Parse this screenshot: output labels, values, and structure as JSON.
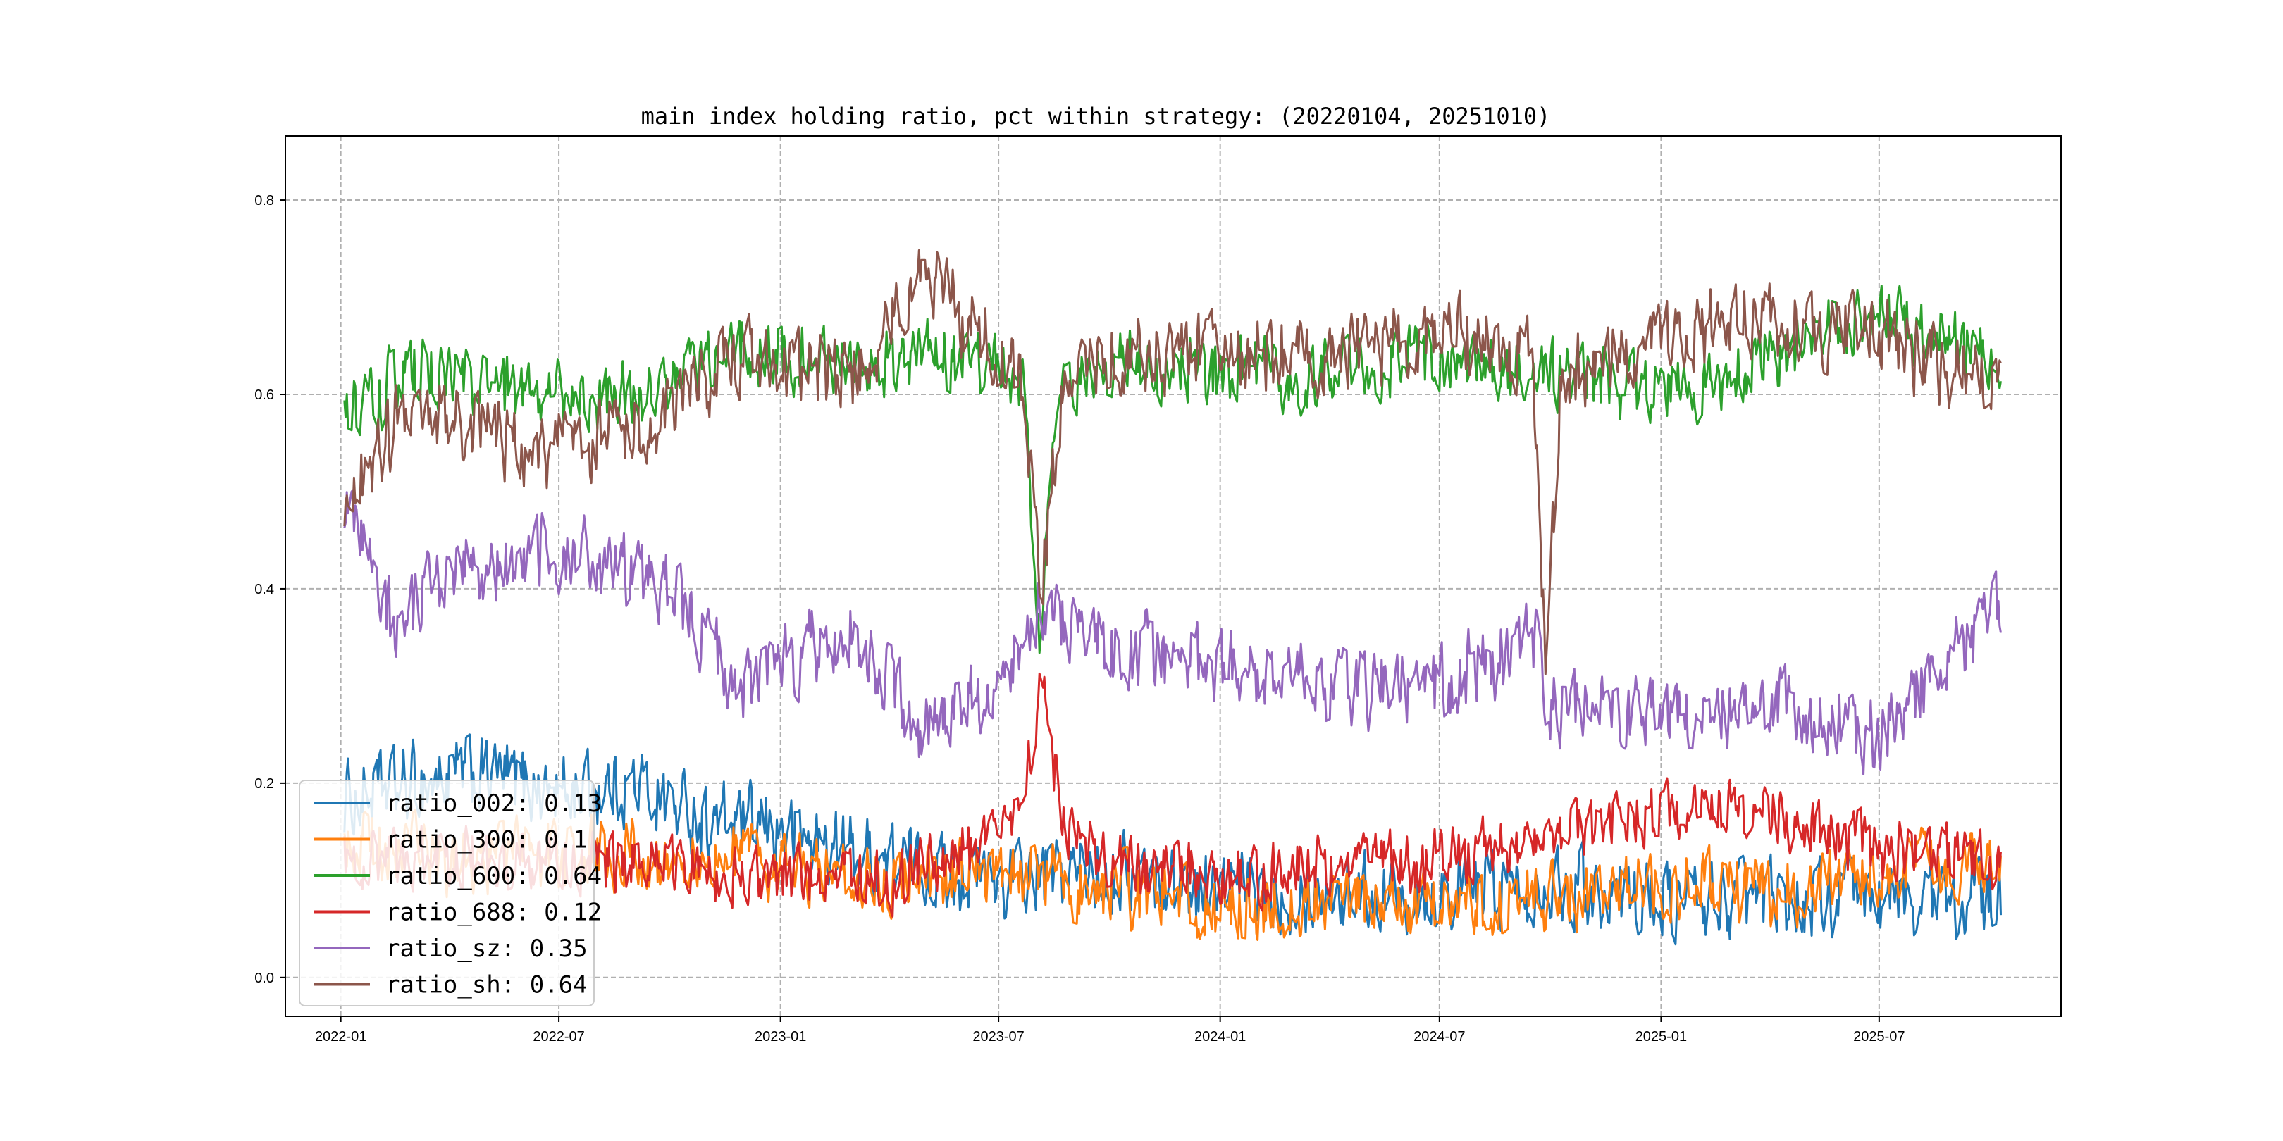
{
  "chart_data": {
    "type": "line",
    "title": "main index holding ratio, pct within strategy: (20220104, 20251010)",
    "xlabel": "",
    "ylabel": "",
    "x_start": "2022-01-04",
    "x_end": "2025-10-10",
    "xlim": [
      "2021-11-16",
      "2025-11-29"
    ],
    "ylim": [
      -0.04,
      0.866
    ],
    "xticks": [
      "2022-01",
      "2022-07",
      "2023-01",
      "2023-07",
      "2024-01",
      "2024-07",
      "2025-01",
      "2025-07"
    ],
    "yticks": [
      "0.0",
      "0.2",
      "0.4",
      "0.6",
      "0.8"
    ],
    "grid": true,
    "legend_position": "lower-left",
    "series": [
      {
        "name": "ratio_002",
        "legend_label": "ratio_002: 0.13",
        "color": "#1f77b4",
        "anchors": [
          [
            "2022-01-04",
            0.18
          ],
          [
            "2022-03-01",
            0.2
          ],
          [
            "2022-05-01",
            0.21
          ],
          [
            "2022-07-01",
            0.19
          ],
          [
            "2022-09-01",
            0.2
          ],
          [
            "2022-11-01",
            0.16
          ],
          [
            "2023-01-01",
            0.15
          ],
          [
            "2023-04-01",
            0.12
          ],
          [
            "2023-07-01",
            0.1
          ],
          [
            "2023-10-01",
            0.11
          ],
          [
            "2024-01-01",
            0.09
          ],
          [
            "2024-04-01",
            0.09
          ],
          [
            "2024-07-01",
            0.09
          ],
          [
            "2024-10-01",
            0.1
          ],
          [
            "2025-01-01",
            0.08
          ],
          [
            "2025-04-01",
            0.08
          ],
          [
            "2025-07-01",
            0.08
          ],
          [
            "2025-10-10",
            0.08
          ]
        ],
        "amplitude": 0.05
      },
      {
        "name": "ratio_300",
        "legend_label": "ratio_300: 0.1",
        "color": "#ff7f0e",
        "anchors": [
          [
            "2022-01-04",
            0.14
          ],
          [
            "2022-04-01",
            0.12
          ],
          [
            "2022-07-01",
            0.13
          ],
          [
            "2022-10-01",
            0.12
          ],
          [
            "2023-01-01",
            0.12
          ],
          [
            "2023-04-01",
            0.1
          ],
          [
            "2023-07-01",
            0.11
          ],
          [
            "2023-10-01",
            0.09
          ],
          [
            "2024-01-01",
            0.07
          ],
          [
            "2024-04-01",
            0.08
          ],
          [
            "2024-07-01",
            0.07
          ],
          [
            "2024-10-01",
            0.08
          ],
          [
            "2025-01-01",
            0.1
          ],
          [
            "2025-04-01",
            0.09
          ],
          [
            "2025-07-01",
            0.1
          ],
          [
            "2025-10-10",
            0.13
          ]
        ],
        "amplitude": 0.045
      },
      {
        "name": "ratio_600",
        "legend_label": "ratio_600: 0.64",
        "color": "#2ca02c",
        "anchors": [
          [
            "2022-01-04",
            0.58
          ],
          [
            "2022-03-01",
            0.62
          ],
          [
            "2022-06-01",
            0.6
          ],
          [
            "2022-09-01",
            0.6
          ],
          [
            "2022-12-01",
            0.65
          ],
          [
            "2023-03-01",
            0.63
          ],
          [
            "2023-06-01",
            0.64
          ],
          [
            "2023-07-20",
            0.62
          ],
          [
            "2023-08-05",
            0.35
          ],
          [
            "2023-08-20",
            0.6
          ],
          [
            "2023-10-01",
            0.63
          ],
          [
            "2024-01-01",
            0.62
          ],
          [
            "2024-04-01",
            0.62
          ],
          [
            "2024-07-01",
            0.64
          ],
          [
            "2024-10-01",
            0.62
          ],
          [
            "2025-01-01",
            0.6
          ],
          [
            "2025-04-01",
            0.64
          ],
          [
            "2025-07-01",
            0.68
          ],
          [
            "2025-10-10",
            0.63
          ]
        ],
        "amplitude": 0.045
      },
      {
        "name": "ratio_688",
        "legend_label": "ratio_688: 0.12",
        "color": "#d62728",
        "anchors": [
          [
            "2022-01-04",
            0.12
          ],
          [
            "2022-06-01",
            0.12
          ],
          [
            "2022-12-01",
            0.11
          ],
          [
            "2023-04-01",
            0.1
          ],
          [
            "2023-07-15",
            0.15
          ],
          [
            "2023-08-05",
            0.3
          ],
          [
            "2023-08-25",
            0.15
          ],
          [
            "2023-10-01",
            0.12
          ],
          [
            "2024-01-01",
            0.1
          ],
          [
            "2024-04-01",
            0.12
          ],
          [
            "2024-07-01",
            0.12
          ],
          [
            "2024-10-01",
            0.14
          ],
          [
            "2025-01-01",
            0.17
          ],
          [
            "2025-04-01",
            0.17
          ],
          [
            "2025-07-01",
            0.13
          ],
          [
            "2025-10-10",
            0.12
          ]
        ],
        "amplitude": 0.04
      },
      {
        "name": "ratio_sz",
        "legend_label": "ratio_sz: 0.35",
        "color": "#9467bd",
        "anchors": [
          [
            "2022-01-04",
            0.48
          ],
          [
            "2022-02-15",
            0.36
          ],
          [
            "2022-04-01",
            0.42
          ],
          [
            "2022-07-01",
            0.44
          ],
          [
            "2022-10-01",
            0.4
          ],
          [
            "2022-12-01",
            0.3
          ],
          [
            "2023-03-01",
            0.36
          ],
          [
            "2023-05-01",
            0.25
          ],
          [
            "2023-07-01",
            0.3
          ],
          [
            "2023-08-10",
            0.38
          ],
          [
            "2023-10-01",
            0.34
          ],
          [
            "2024-01-01",
            0.32
          ],
          [
            "2024-04-01",
            0.3
          ],
          [
            "2024-07-01",
            0.3
          ],
          [
            "2024-09-20",
            0.35
          ],
          [
            "2024-10-01",
            0.28
          ],
          [
            "2025-01-01",
            0.28
          ],
          [
            "2025-04-01",
            0.28
          ],
          [
            "2025-07-01",
            0.25
          ],
          [
            "2025-10-10",
            0.38
          ]
        ],
        "amplitude": 0.05
      },
      {
        "name": "ratio_sh",
        "legend_label": "ratio_sh: 0.64",
        "color": "#8c564b",
        "anchors": [
          [
            "2022-01-04",
            0.48
          ],
          [
            "2022-03-01",
            0.6
          ],
          [
            "2022-06-01",
            0.54
          ],
          [
            "2022-09-01",
            0.56
          ],
          [
            "2022-12-01",
            0.64
          ],
          [
            "2023-03-01",
            0.62
          ],
          [
            "2023-05-01",
            0.72
          ],
          [
            "2023-07-01",
            0.64
          ],
          [
            "2023-07-20",
            0.62
          ],
          [
            "2023-08-05",
            0.4
          ],
          [
            "2023-08-25",
            0.62
          ],
          [
            "2023-10-01",
            0.64
          ],
          [
            "2024-01-01",
            0.64
          ],
          [
            "2024-04-01",
            0.64
          ],
          [
            "2024-07-01",
            0.66
          ],
          [
            "2024-09-15",
            0.64
          ],
          [
            "2024-09-28",
            0.32
          ],
          [
            "2024-10-10",
            0.62
          ],
          [
            "2025-01-01",
            0.66
          ],
          [
            "2025-04-01",
            0.68
          ],
          [
            "2025-07-01",
            0.66
          ],
          [
            "2025-10-10",
            0.6
          ]
        ],
        "amplitude": 0.05
      }
    ]
  }
}
